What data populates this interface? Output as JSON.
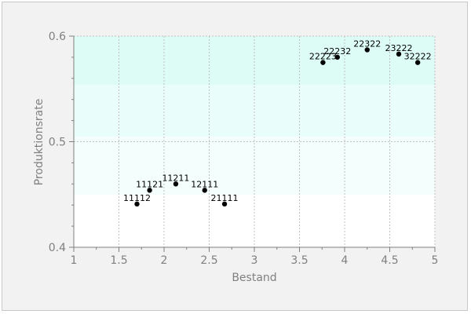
{
  "chart_data": {
    "type": "scatter",
    "title": "",
    "xlabel": "Bestand",
    "ylabel": "Produktionsrate",
    "xlim": [
      1,
      5
    ],
    "ylim": [
      0.4,
      0.6
    ],
    "xticks": [
      1,
      1.5,
      2,
      2.5,
      3,
      3.5,
      4,
      4.5,
      5
    ],
    "xtick_labels": [
      "1",
      "1.5",
      "2",
      "2.5",
      "3",
      "3.5",
      "4",
      "4.5",
      "5"
    ],
    "yticks": [
      0.4,
      0.5,
      0.6
    ],
    "ytick_labels": [
      "0.4",
      "0.5",
      "0.6"
    ],
    "grid": true,
    "bands": [
      {
        "from": 0.4,
        "to": 0.45,
        "color": "#ffffff"
      },
      {
        "from": 0.45,
        "to": 0.505,
        "color": "#f4fefc"
      },
      {
        "from": 0.505,
        "to": 0.554,
        "color": "#e9fdfa"
      },
      {
        "from": 0.554,
        "to": 0.6,
        "color": "#ddfcf6"
      }
    ],
    "points": [
      {
        "label": "11112",
        "x": 1.7,
        "y": 0.441
      },
      {
        "label": "11121",
        "x": 1.84,
        "y": 0.454
      },
      {
        "label": "11211",
        "x": 2.13,
        "y": 0.46
      },
      {
        "label": "12111",
        "x": 2.45,
        "y": 0.454
      },
      {
        "label": "21111",
        "x": 2.67,
        "y": 0.441
      },
      {
        "label": "22223",
        "x": 3.76,
        "y": 0.575
      },
      {
        "label": "22232",
        "x": 3.92,
        "y": 0.58
      },
      {
        "label": "22322",
        "x": 4.25,
        "y": 0.587
      },
      {
        "label": "23222",
        "x": 4.6,
        "y": 0.583
      },
      {
        "label": "32222",
        "x": 4.81,
        "y": 0.575
      }
    ],
    "colors": {
      "point": "#000000",
      "grid": "#c0c0c0",
      "axis": "#808080"
    }
  }
}
